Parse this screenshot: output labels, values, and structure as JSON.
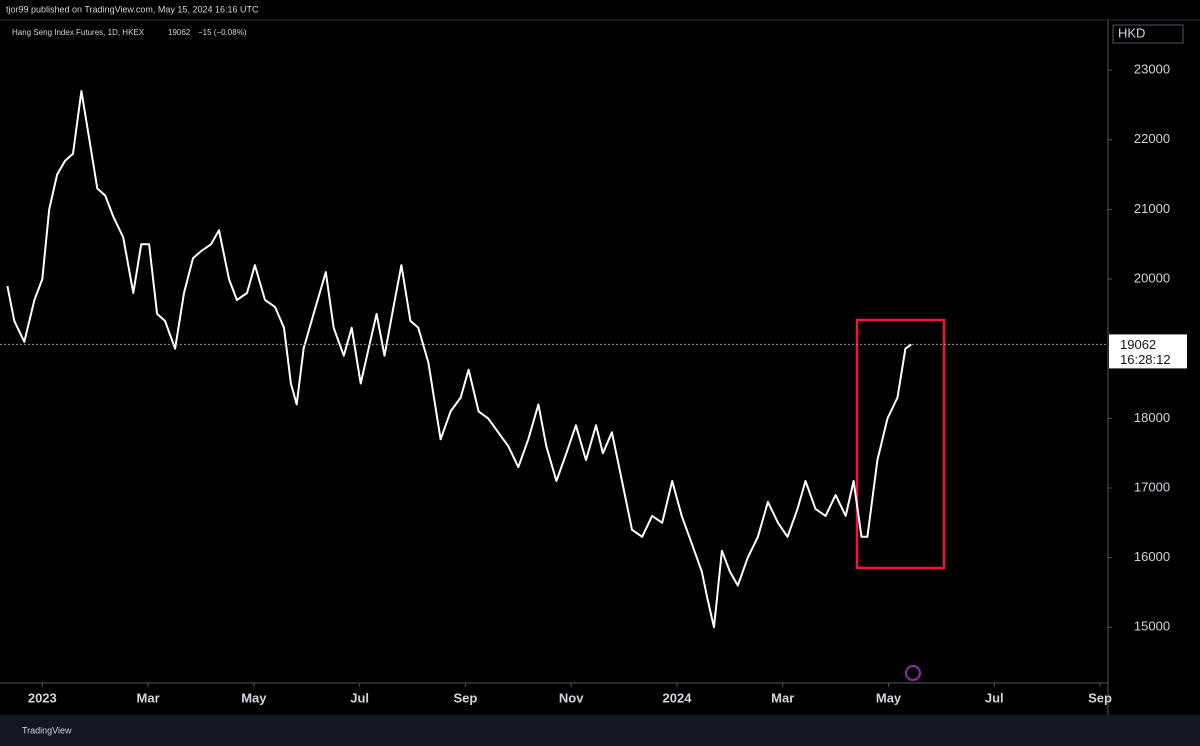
{
  "header": {
    "byline": "tjor99 published on TradingView.com, May 15, 2024 16:16 UTC",
    "footer": "TradingView"
  },
  "chart_data": {
    "type": "line",
    "currency": "HKD",
    "series": [
      {
        "name": "Hang Seng Index Futures, 1D, HKEX",
        "color": "#ffffff",
        "x": [
          -0.66,
          -0.53,
          -0.34,
          -0.15,
          0,
          0.13,
          0.28,
          0.43,
          0.58,
          0.74,
          0.89,
          1.04,
          1.19,
          1.34,
          1.53,
          1.72,
          1.87,
          2.02,
          2.17,
          2.32,
          2.51,
          2.68,
          2.85,
          3.0,
          3.19,
          3.34,
          3.53,
          3.68,
          3.87,
          4.02,
          4.21,
          4.4,
          4.57,
          4.7,
          4.81,
          4.94,
          5.13,
          5.36,
          5.51,
          5.7,
          5.85,
          6.02,
          6.17,
          6.32,
          6.47,
          6.64,
          6.79,
          6.96,
          7.11,
          7.3,
          7.53,
          7.72,
          7.91,
          8.06,
          8.25,
          8.43,
          8.62,
          8.81,
          9.0,
          9.19,
          9.38,
          9.53,
          9.72,
          9.91,
          10.09,
          10.28,
          10.47,
          10.6,
          10.77,
          10.96,
          11.15,
          11.34,
          11.53,
          11.72,
          11.91,
          12.09,
          12.28,
          12.47,
          12.58,
          12.7,
          12.85,
          13.0,
          13.15,
          13.34,
          13.53,
          13.72,
          13.91,
          14.09,
          14.28,
          14.43,
          14.62,
          14.81,
          15.0,
          15.19,
          15.34,
          15.49,
          15.6,
          15.79,
          15.98,
          16.17,
          16.32,
          16.43
        ],
        "values": [
          19900,
          19400,
          19100,
          19700,
          20000,
          21000,
          21500,
          21700,
          21800,
          22700,
          22000,
          21300,
          21200,
          20900,
          20600,
          19800,
          20500,
          20500,
          19500,
          19400,
          19000,
          19800,
          20300,
          20400,
          20500,
          20700,
          20000,
          19700,
          19800,
          20200,
          19700,
          19600,
          19300,
          18500,
          18200,
          19000,
          19500,
          20100,
          19300,
          18900,
          19300,
          18500,
          19000,
          19500,
          18900,
          19600,
          20200,
          19400,
          19300,
          18800,
          17700,
          18100,
          18300,
          18700,
          18100,
          18000,
          17800,
          17600,
          17300,
          17700,
          18200,
          17600,
          17100,
          17500,
          17900,
          17400,
          17900,
          17500,
          17800,
          17100,
          16400,
          16300,
          16600,
          16500,
          17100,
          16600,
          16200,
          15800,
          15400,
          15000,
          16100,
          15800,
          15600,
          16000,
          16300,
          16800,
          16500,
          16300,
          16700,
          17100,
          16700,
          16600,
          16900,
          16600,
          17100,
          16300,
          16300,
          17400,
          18000,
          18300,
          19000,
          19062
        ]
      }
    ],
    "last_value": 19062,
    "last_change": "−15 (−0.08%)",
    "countdown": "16:28:12",
    "xlim": [
      -0.8,
      20.15
    ],
    "xticks": [
      {
        "value": 0,
        "label": "2023"
      },
      {
        "value": 2,
        "label": "Mar"
      },
      {
        "value": 4,
        "label": "May"
      },
      {
        "value": 6,
        "label": "Jul"
      },
      {
        "value": 8,
        "label": "Sep"
      },
      {
        "value": 10,
        "label": "Nov"
      },
      {
        "value": 12,
        "label": "2024"
      },
      {
        "value": 14,
        "label": "Mar"
      },
      {
        "value": 16,
        "label": "May"
      },
      {
        "value": 18,
        "label": "Jul"
      },
      {
        "value": 20,
        "label": "Sep"
      }
    ],
    "ylim": [
      14200,
      23720
    ],
    "yticks": [
      15000,
      16000,
      17000,
      18000,
      19000,
      20000,
      21000,
      22000,
      23000
    ],
    "grid": false
  }
}
